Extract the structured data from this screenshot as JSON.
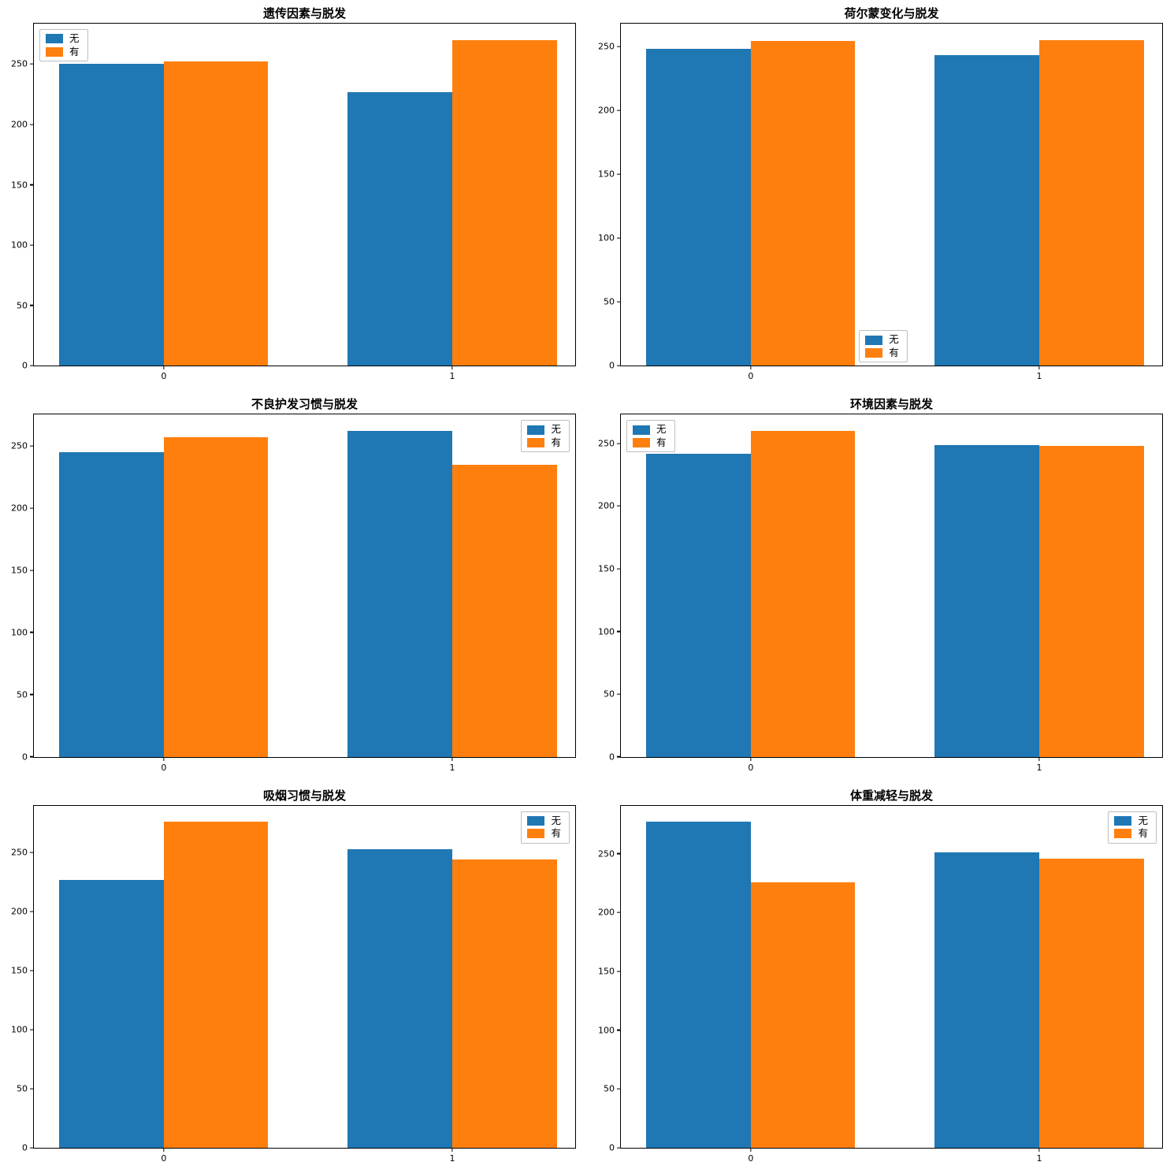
{
  "figure": {
    "background": "#ffffff",
    "series_labels": [
      "无",
      "有"
    ],
    "colors": {
      "series1": "#1f77b4",
      "series2": "#ff7f0e"
    }
  },
  "chart_data": [
    {
      "type": "bar",
      "title": "遗传因素与脱发",
      "categories": [
        "0",
        "1"
      ],
      "series": [
        {
          "name": "无",
          "color": "#1f77b4",
          "values": [
            250,
            227
          ]
        },
        {
          "name": "有",
          "color": "#ff7f0e",
          "values": [
            252,
            270
          ]
        }
      ],
      "yticks": [
        0,
        50,
        100,
        150,
        200,
        250
      ],
      "ylim": [
        0,
        283.5
      ],
      "legend_pos": "upper-left",
      "grid": false
    },
    {
      "type": "bar",
      "title": "荷尔蒙变化与脱发",
      "categories": [
        "0",
        "1"
      ],
      "series": [
        {
          "name": "无",
          "color": "#1f77b4",
          "values": [
            248,
            243
          ]
        },
        {
          "name": "有",
          "color": "#ff7f0e",
          "values": [
            254,
            255
          ]
        }
      ],
      "yticks": [
        0,
        50,
        100,
        150,
        200,
        250
      ],
      "ylim": [
        0,
        267.8
      ],
      "legend_pos": "lower-center",
      "grid": false
    },
    {
      "type": "bar",
      "title": "不良护发习惯与脱发",
      "categories": [
        "0",
        "1"
      ],
      "series": [
        {
          "name": "无",
          "color": "#1f77b4",
          "values": [
            245,
            262
          ]
        },
        {
          "name": "有",
          "color": "#ff7f0e",
          "values": [
            257,
            235
          ]
        }
      ],
      "yticks": [
        0,
        50,
        100,
        150,
        200,
        250
      ],
      "ylim": [
        0,
        275.1
      ],
      "legend_pos": "upper-right",
      "grid": false
    },
    {
      "type": "bar",
      "title": "环境因素与脱发",
      "categories": [
        "0",
        "1"
      ],
      "series": [
        {
          "name": "无",
          "color": "#1f77b4",
          "values": [
            242,
            249
          ]
        },
        {
          "name": "有",
          "color": "#ff7f0e",
          "values": [
            260,
            248
          ]
        }
      ],
      "yticks": [
        0,
        50,
        100,
        150,
        200,
        250
      ],
      "ylim": [
        0,
        273.0
      ],
      "legend_pos": "upper-left",
      "grid": false
    },
    {
      "type": "bar",
      "title": "吸烟习惯与脱发",
      "categories": [
        "0",
        "1"
      ],
      "series": [
        {
          "name": "无",
          "color": "#1f77b4",
          "values": [
            227,
            253
          ]
        },
        {
          "name": "有",
          "color": "#ff7f0e",
          "values": [
            276,
            244
          ]
        }
      ],
      "yticks": [
        0,
        50,
        100,
        150,
        200,
        250
      ],
      "ylim": [
        0,
        289.8
      ],
      "legend_pos": "upper-right",
      "grid": false
    },
    {
      "type": "bar",
      "title": "体重减轻与脱发",
      "categories": [
        "0",
        "1"
      ],
      "series": [
        {
          "name": "无",
          "color": "#1f77b4",
          "values": [
            277,
            251
          ]
        },
        {
          "name": "有",
          "color": "#ff7f0e",
          "values": [
            226,
            246
          ]
        }
      ],
      "yticks": [
        0,
        50,
        100,
        150,
        200,
        250
      ],
      "ylim": [
        0,
        290.9
      ],
      "legend_pos": "upper-right",
      "grid": false
    }
  ]
}
